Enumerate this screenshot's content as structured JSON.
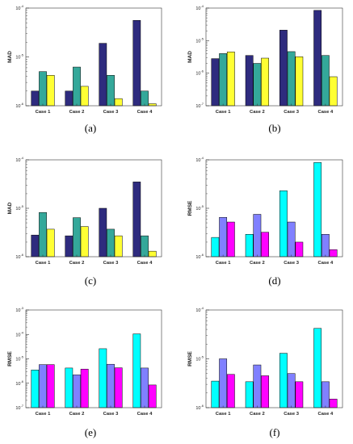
{
  "chart_data": [
    {
      "type": "bar",
      "panel_label": "(a)",
      "ylabel": "MAD",
      "yscale": "log",
      "ylim": [
        1e-06,
        0.0001
      ],
      "categories": [
        "Case 1",
        "Case 2",
        "Case 3",
        "Case 4"
      ],
      "series": [
        {
          "color": "#2e2b7e",
          "values": [
            2e-06,
            2e-06,
            1.9e-05,
            5.6e-05
          ]
        },
        {
          "color": "#34a89a",
          "values": [
            5e-06,
            6.2e-06,
            4.2e-06,
            2e-06
          ]
        },
        {
          "color": "#ffff33",
          "values": [
            4.2e-06,
            2.5e-06,
            1.4e-06,
            1.1e-06
          ]
        }
      ]
    },
    {
      "type": "bar",
      "panel_label": "(b)",
      "ylabel": "MAD",
      "yscale": "log",
      "ylim": [
        1e-07,
        0.0001
      ],
      "categories": [
        "Case 1",
        "Case 2",
        "Case 3",
        "Case 4"
      ],
      "series": [
        {
          "color": "#2e2b7e",
          "values": [
            2.8e-06,
            3.5e-06,
            2.1e-05,
            8.5e-05
          ]
        },
        {
          "color": "#34a89a",
          "values": [
            4e-06,
            2e-06,
            4.6e-06,
            3.5e-06
          ]
        },
        {
          "color": "#ffff33",
          "values": [
            4.5e-06,
            2.9e-06,
            3.2e-06,
            7.8e-07
          ]
        }
      ]
    },
    {
      "type": "bar",
      "panel_label": "(c)",
      "ylabel": "MAD",
      "yscale": "log",
      "ylim": [
        1e-06,
        0.0001
      ],
      "categories": [
        "Case 1",
        "Case 2",
        "Case 3",
        "Case 4"
      ],
      "series": [
        {
          "color": "#2e2b7e",
          "values": [
            2.8e-06,
            2.7e-06,
            1e-05,
            3.5e-05
          ]
        },
        {
          "color": "#34a89a",
          "values": [
            8.2e-06,
            6.4e-06,
            3.7e-06,
            2.7e-06
          ]
        },
        {
          "color": "#ffff33",
          "values": [
            3.7e-06,
            4.2e-06,
            2.7e-06,
            1.3e-06
          ]
        }
      ]
    },
    {
      "type": "bar",
      "panel_label": "(d)",
      "ylabel": "RMSE",
      "yscale": "log",
      "ylim": [
        1e-06,
        0.0001
      ],
      "categories": [
        "Case 1",
        "Case 2",
        "Case 3",
        "Case 4"
      ],
      "series": [
        {
          "color": "#00ffff",
          "values": [
            2.5e-06,
            2.9e-06,
            2.3e-05,
            8.8e-05
          ]
        },
        {
          "color": "#8080ff",
          "values": [
            6.5e-06,
            7.5e-06,
            5.2e-06,
            2.9e-06
          ]
        },
        {
          "color": "#ff00ff",
          "values": [
            5.2e-06,
            3.2e-06,
            2e-06,
            1.4e-06
          ]
        }
      ]
    },
    {
      "type": "bar",
      "panel_label": "(e)",
      "ylabel": "RMSE",
      "yscale": "log",
      "ylim": [
        1e-07,
        0.001
      ],
      "categories": [
        "Case 1",
        "Case 2",
        "Case 3",
        "Case 4"
      ],
      "series": [
        {
          "color": "#00ffff",
          "values": [
            3.5e-06,
            4.2e-06,
            2.6e-05,
            0.000105
          ]
        },
        {
          "color": "#8080ff",
          "values": [
            5.8e-06,
            2.2e-06,
            6e-06,
            4.2e-06
          ]
        },
        {
          "color": "#ff00ff",
          "values": [
            5.8e-06,
            3.8e-06,
            4.3e-06,
            8.5e-07
          ]
        }
      ]
    },
    {
      "type": "bar",
      "panel_label": "(f)",
      "ylabel": "RMSE",
      "yscale": "log",
      "ylim": [
        1e-06,
        0.0001
      ],
      "categories": [
        "Case 1",
        "Case 2",
        "Case 3",
        "Case 4"
      ],
      "series": [
        {
          "color": "#00ffff",
          "values": [
            3.5e-06,
            3.4e-06,
            1.3e-05,
            4.2e-05
          ]
        },
        {
          "color": "#8080ff",
          "values": [
            1e-05,
            7.5e-06,
            5e-06,
            3.4e-06
          ]
        },
        {
          "color": "#ff00ff",
          "values": [
            4.8e-06,
            4.5e-06,
            3.4e-06,
            1.5e-06
          ]
        }
      ]
    }
  ]
}
